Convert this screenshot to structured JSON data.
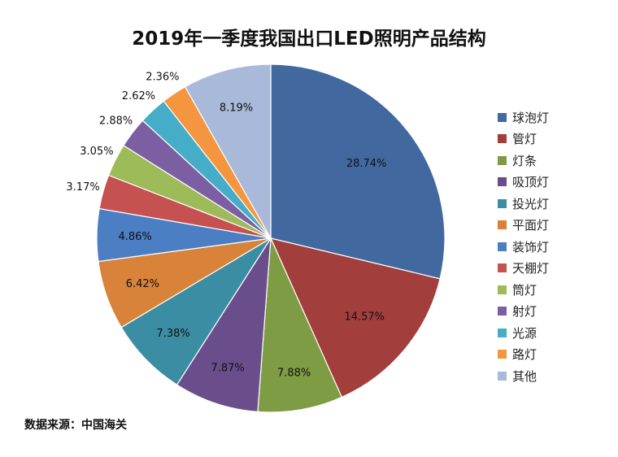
{
  "chart_data": {
    "type": "pie",
    "title": "2019年一季度我国出口LED照明产品结构",
    "legend_position": "right",
    "categories": [
      "球泡灯",
      "管灯",
      "灯条",
      "吸顶灯",
      "投光灯",
      "平面灯",
      "装饰灯",
      "天棚灯",
      "筒灯",
      "射灯",
      "光源",
      "路灯",
      "其他"
    ],
    "values": [
      28.74,
      14.57,
      7.88,
      7.87,
      7.38,
      6.42,
      4.86,
      3.17,
      3.05,
      2.88,
      2.62,
      2.36,
      8.19
    ],
    "labels": [
      "28.74%",
      "14.57%",
      "7.88%",
      "7.87%",
      "7.38%",
      "6.42%",
      "4.86%",
      "3.17%",
      "3.05%",
      "2.88%",
      "2.62%",
      "2.36%",
      "8.19%"
    ],
    "colors": [
      "#4169A0",
      "#A23E3C",
      "#7E9C43",
      "#6A4E8C",
      "#3B8DA3",
      "#D8823A",
      "#4B7EC3",
      "#C55150",
      "#9DBB59",
      "#7C5FA3",
      "#45ADC7",
      "#F3963F",
      "#A9B9D9"
    ]
  },
  "source": "数据来源：中国海关"
}
